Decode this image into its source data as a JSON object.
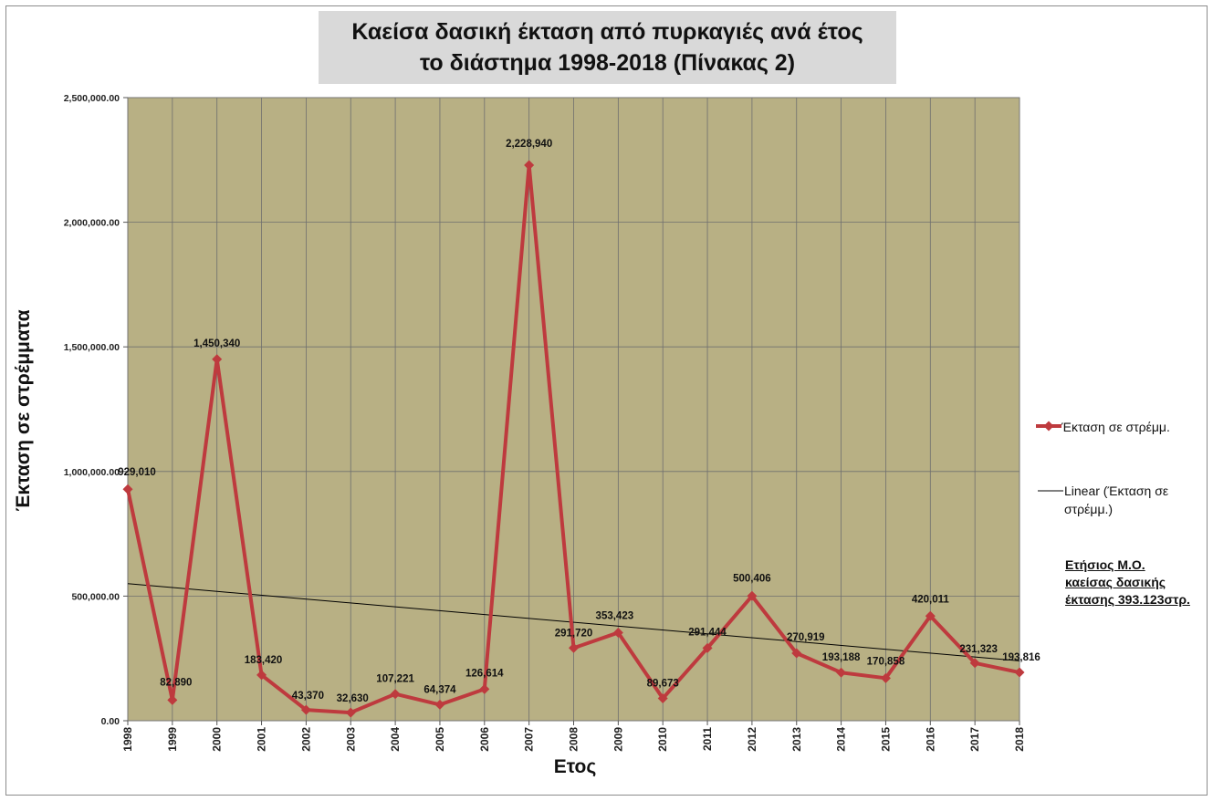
{
  "title_line1": "Καείσα δασική έκταση από πυρκαγιές ανά έτος",
  "title_line2": "το διάστημα 1998-2018 (Πίνακας  2)",
  "annotation": "Ετήσιος Μ.Ο. καείσας δασικής έκτασης 393.123στρ.",
  "legend": {
    "series_label": "Έκταση σε στρέμμ.",
    "trend_label": "Linear (Έκταση σε στρέμμ.)"
  },
  "colors": {
    "plot_background": "#b8b084",
    "series": "#be3a3e",
    "trend": "#000000",
    "grid": "#6f6f6f"
  },
  "chart_data": {
    "type": "line",
    "xlabel": "Ετος",
    "ylabel": "Έκταση σε στρέμματα",
    "ylim": [
      0,
      2500000
    ],
    "y_ticks": [
      "0.00",
      "500,000.00",
      "1,000,000.00",
      "1,500,000.00",
      "2,000,000.00",
      "2,500,000.00"
    ],
    "grid": true,
    "legend_position": "right",
    "categories": [
      "1998",
      "1999",
      "2000",
      "2001",
      "2002",
      "2003",
      "2004",
      "2005",
      "2006",
      "2007",
      "2008",
      "2009",
      "2010",
      "2011",
      "2012",
      "2013",
      "2014",
      "2015",
      "2016",
      "2017",
      "2018"
    ],
    "series": [
      {
        "name": "Έκταση σε στρέμμ.",
        "values": [
          929010,
          82890,
          1450340,
          183420,
          43370,
          32630,
          107221,
          64374,
          126614,
          2228940,
          291720,
          353423,
          89673,
          291444,
          500406,
          270919,
          193188,
          170858,
          420011,
          231323,
          193816
        ],
        "labels": [
          "929,010",
          "82,890",
          "1,450,340",
          "183,420",
          "43,370",
          "32,630",
          "107,221",
          "64,374",
          "126,614",
          "2,228,940",
          "291,720",
          "353,423",
          "89,673",
          "291,444",
          "500,406",
          "270,919",
          "193,188",
          "170,858",
          "420,011",
          "231,323",
          "193,816"
        ]
      }
    ],
    "trendline": {
      "name": "Linear (Έκταση σε στρέμμ.)",
      "start_value": 550000,
      "end_value": 240000
    }
  }
}
